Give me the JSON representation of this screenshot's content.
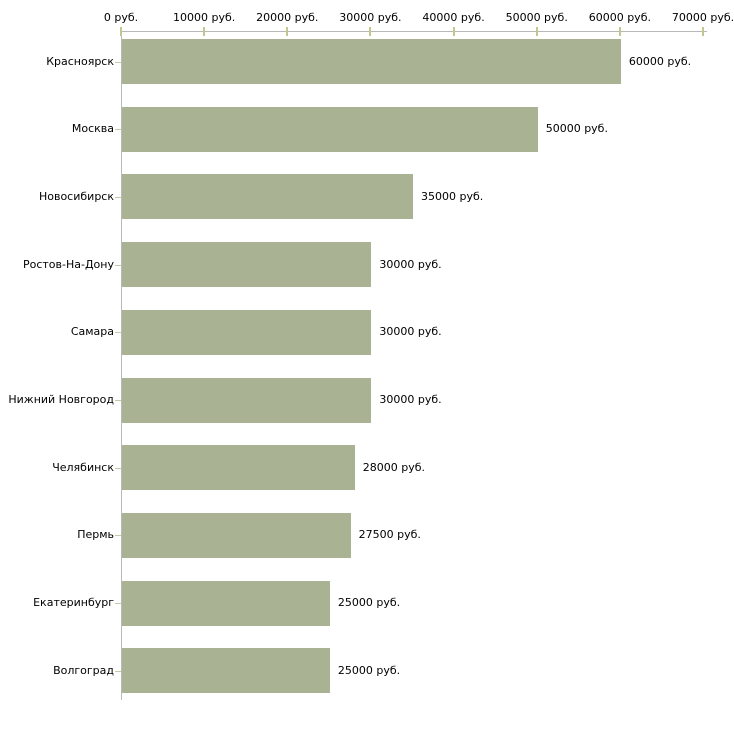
{
  "chart_data": {
    "type": "bar",
    "orientation": "horizontal",
    "title": "",
    "xlabel": "",
    "ylabel": "",
    "unit": "руб.",
    "xlim": [
      0,
      70000
    ],
    "grid": false,
    "legend": false,
    "categories": [
      "Красноярск",
      "Москва",
      "Новосибирск",
      "Ростов-На-Дону",
      "Самара",
      "Нижний Новгород",
      "Челябинск",
      "Пермь",
      "Екатеринбург",
      "Волгоград"
    ],
    "values": [
      60000,
      50000,
      35000,
      30000,
      30000,
      30000,
      28000,
      27500,
      25000,
      25000
    ],
    "value_labels": [
      "60000 руб.",
      "50000 руб.",
      "35000 руб.",
      "30000 руб.",
      "30000 руб.",
      "30000 руб.",
      "28000 руб.",
      "27500 руб.",
      "25000 руб.",
      "25000 руб."
    ],
    "x_tick_values": [
      0,
      10000,
      20000,
      30000,
      40000,
      50000,
      60000,
      70000
    ],
    "x_tick_labels": [
      "0 руб.",
      "10000 руб.",
      "20000 руб.",
      "30000 руб.",
      "40000 руб.",
      "50000 руб.",
      "60000 руб.",
      "70000 руб."
    ],
    "colors": {
      "bar": "#a9b293",
      "axis": "#b9b9b9",
      "tick": "#c5c58f",
      "text": "#000000",
      "background": "#ffffff"
    }
  }
}
